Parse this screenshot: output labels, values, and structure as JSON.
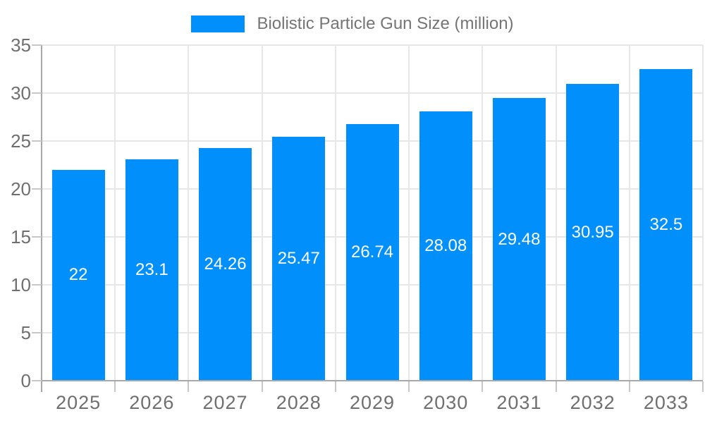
{
  "chart_data": {
    "type": "bar",
    "title": "",
    "legend_position": "top",
    "categories": [
      "2025",
      "2026",
      "2027",
      "2028",
      "2029",
      "2030",
      "2031",
      "2032",
      "2033"
    ],
    "series": [
      {
        "name": "Biolistic Particle Gun Size (million)",
        "values": [
          22,
          23.1,
          24.26,
          25.47,
          26.74,
          28.08,
          29.48,
          30.95,
          32.5
        ]
      }
    ],
    "xlabel": "",
    "ylabel": "",
    "ylim": [
      0,
      35
    ],
    "yticks": [
      0,
      5,
      10,
      15,
      20,
      25,
      30,
      35
    ],
    "grid": true,
    "bar_value_labels_shown": true,
    "colors": {
      "bar": "#008FFB",
      "bar_label_text": "#ffffff",
      "axis_text": "#6f6f6f",
      "legend_text": "#757575",
      "gridline": "#e7e7e7",
      "axis_line": "#a8a8a8",
      "tick": "#c6c6c6",
      "background": "#ffffff"
    }
  }
}
